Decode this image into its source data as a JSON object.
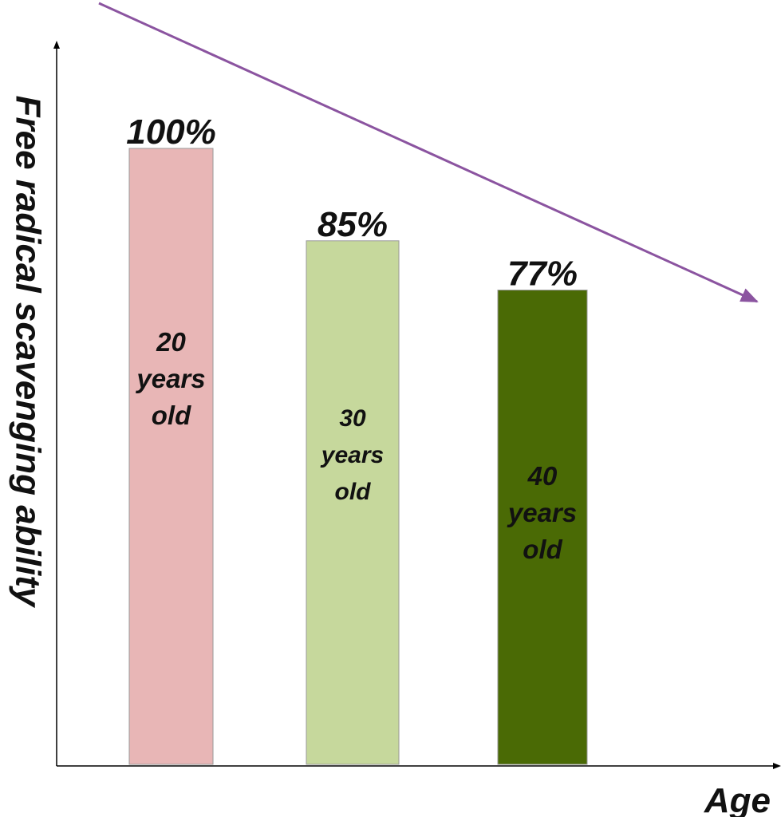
{
  "chart_data": {
    "type": "bar",
    "title": "",
    "xlabel": "Age",
    "ylabel": "Free radical scavenging ability",
    "ylim": [
      0,
      100
    ],
    "grid": false,
    "legend": "none",
    "categories": [
      "20 years old",
      "30 years old",
      "40 years old"
    ],
    "category_lines": [
      [
        "20",
        "years",
        "old"
      ],
      [
        "30",
        "years",
        "old"
      ],
      [
        "40",
        "years",
        "old"
      ]
    ],
    "values": [
      100,
      85,
      77
    ],
    "data_labels": [
      "100%",
      "85%",
      "77%"
    ],
    "colors": [
      "#e8b6b6",
      "#c6d89c",
      "#4a6a05"
    ],
    "trend_arrow_color": "#8b54a0",
    "axis_color": "#000000"
  }
}
